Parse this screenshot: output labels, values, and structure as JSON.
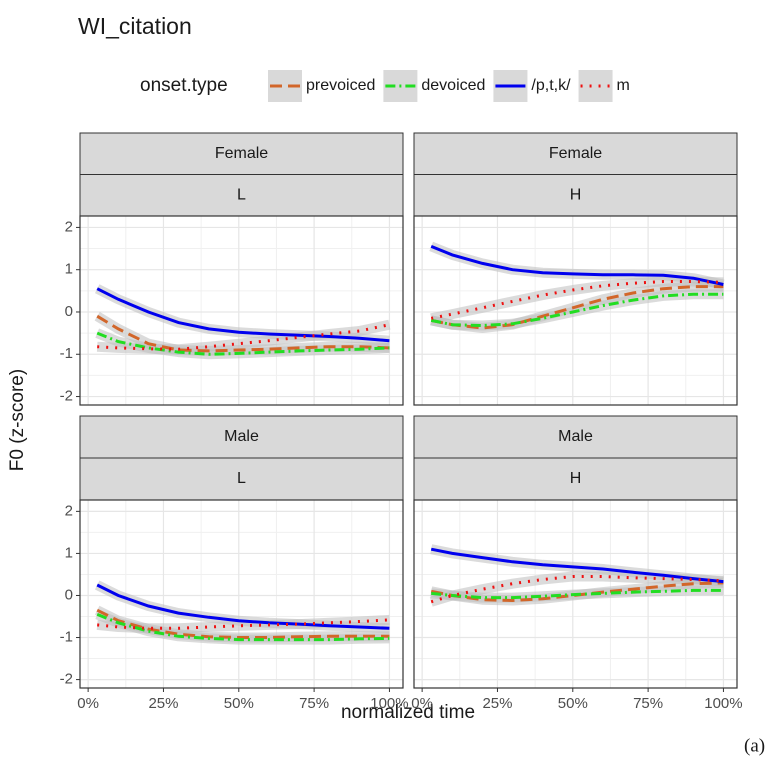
{
  "chart_data": {
    "type": "line",
    "title": "WI_citation",
    "legend_title": "onset.type",
    "x_label": "normalized time",
    "y_label": "F0 (z-score)",
    "caption": "(a)",
    "grid": true,
    "xlim": [
      -2.7,
      104.5
    ],
    "ylim": [
      -2.2,
      2.27
    ],
    "xticks": [
      {
        "value": 0,
        "label": "0%"
      },
      {
        "value": 25,
        "label": "25%"
      },
      {
        "value": 50,
        "label": "50%"
      },
      {
        "value": 75,
        "label": "75%"
      },
      {
        "value": 100,
        "label": "100%"
      }
    ],
    "yticks": [
      -2,
      -1,
      0,
      1,
      2
    ],
    "x": [
      3,
      10,
      20,
      30,
      40,
      50,
      60,
      70,
      80,
      90,
      100
    ],
    "series": [
      {
        "name": "prevoiced",
        "color": "#d2662a",
        "dash": "12 6"
      },
      {
        "name": "devoiced",
        "color": "#22dd22",
        "dash": "10 4 2 4"
      },
      {
        "name": "/p,t,k/",
        "color": "#0000ee",
        "dash": "none"
      },
      {
        "name": "m",
        "color": "#ee1111",
        "dash": "2 7"
      }
    ],
    "panels": [
      {
        "strips": [
          "Female",
          "L"
        ],
        "values": [
          [
            -0.1,
            -0.4,
            -0.75,
            -0.9,
            -0.92,
            -0.9,
            -0.88,
            -0.85,
            -0.82,
            -0.82,
            -0.85
          ],
          [
            -0.5,
            -0.7,
            -0.85,
            -0.95,
            -1.0,
            -0.98,
            -0.95,
            -0.92,
            -0.9,
            -0.88,
            -0.85
          ],
          [
            0.55,
            0.3,
            0.0,
            -0.25,
            -0.4,
            -0.48,
            -0.52,
            -0.55,
            -0.58,
            -0.62,
            -0.68
          ],
          [
            -0.82,
            -0.85,
            -0.87,
            -0.88,
            -0.82,
            -0.75,
            -0.68,
            -0.6,
            -0.52,
            -0.45,
            -0.3
          ]
        ]
      },
      {
        "strips": [
          "Female",
          "H"
        ],
        "values": [
          [
            -0.2,
            -0.3,
            -0.38,
            -0.3,
            -0.1,
            0.1,
            0.3,
            0.45,
            0.55,
            0.6,
            0.6
          ],
          [
            -0.2,
            -0.3,
            -0.32,
            -0.28,
            -0.15,
            0.0,
            0.15,
            0.28,
            0.38,
            0.42,
            0.42
          ],
          [
            1.55,
            1.35,
            1.15,
            1.0,
            0.93,
            0.9,
            0.88,
            0.88,
            0.87,
            0.8,
            0.65
          ],
          [
            -0.15,
            -0.05,
            0.1,
            0.25,
            0.4,
            0.52,
            0.62,
            0.68,
            0.72,
            0.72,
            0.7
          ]
        ]
      },
      {
        "strips": [
          "Male",
          "L"
        ],
        "values": [
          [
            -0.35,
            -0.6,
            -0.8,
            -0.92,
            -0.98,
            -1.0,
            -1.0,
            -0.98,
            -0.97,
            -0.97,
            -0.97
          ],
          [
            -0.45,
            -0.65,
            -0.85,
            -0.97,
            -1.02,
            -1.05,
            -1.05,
            -1.05,
            -1.05,
            -1.03,
            -1.02
          ],
          [
            0.25,
            0.0,
            -0.25,
            -0.42,
            -0.52,
            -0.6,
            -0.65,
            -0.68,
            -0.72,
            -0.75,
            -0.78
          ],
          [
            -0.7,
            -0.75,
            -0.78,
            -0.78,
            -0.75,
            -0.72,
            -0.7,
            -0.68,
            -0.65,
            -0.62,
            -0.58
          ]
        ]
      },
      {
        "strips": [
          "Male",
          "H"
        ],
        "values": [
          [
            0.1,
            0.0,
            -0.1,
            -0.12,
            -0.08,
            0.0,
            0.08,
            0.15,
            0.22,
            0.28,
            0.3
          ],
          [
            0.05,
            0.0,
            -0.05,
            -0.05,
            -0.02,
            0.02,
            0.05,
            0.08,
            0.1,
            0.12,
            0.12
          ],
          [
            1.1,
            1.0,
            0.9,
            0.8,
            0.73,
            0.68,
            0.63,
            0.55,
            0.48,
            0.4,
            0.33
          ],
          [
            -0.15,
            0.0,
            0.15,
            0.28,
            0.38,
            0.45,
            0.45,
            0.42,
            0.4,
            0.38,
            0.35
          ]
        ]
      }
    ]
  }
}
